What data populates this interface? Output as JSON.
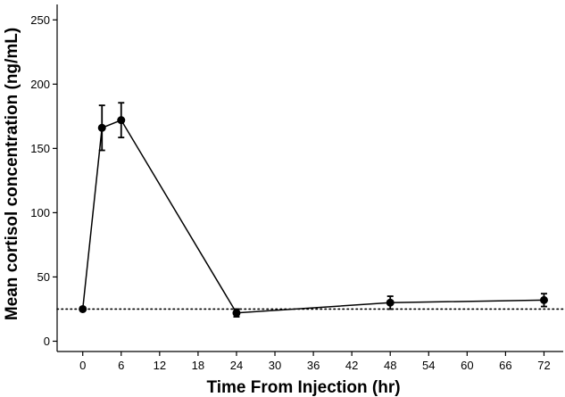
{
  "chart_data": {
    "type": "line",
    "title": "",
    "xlabel": "Time From Injection (hr)",
    "ylabel": "Mean cortisol concentration (ng/mL)",
    "xlim": [
      -4,
      75
    ],
    "ylim": [
      -8,
      262
    ],
    "xticks": [
      0,
      6,
      12,
      18,
      24,
      30,
      36,
      42,
      48,
      54,
      60,
      66,
      72
    ],
    "yticks": [
      0,
      50,
      100,
      150,
      200,
      250
    ],
    "grid": false,
    "series": [
      {
        "name": "Mean cortisol",
        "x": [
          0,
          3,
          6,
          24,
          48,
          72
        ],
        "y": [
          25,
          166,
          172,
          22,
          30,
          32
        ],
        "error": [
          0,
          17.5,
          13.5,
          3,
          5,
          5
        ]
      }
    ],
    "reference_line": {
      "y": 25,
      "style": "dotted"
    },
    "colors": {
      "line": "#000000",
      "marker": "#000000",
      "reference": "#000000"
    }
  }
}
